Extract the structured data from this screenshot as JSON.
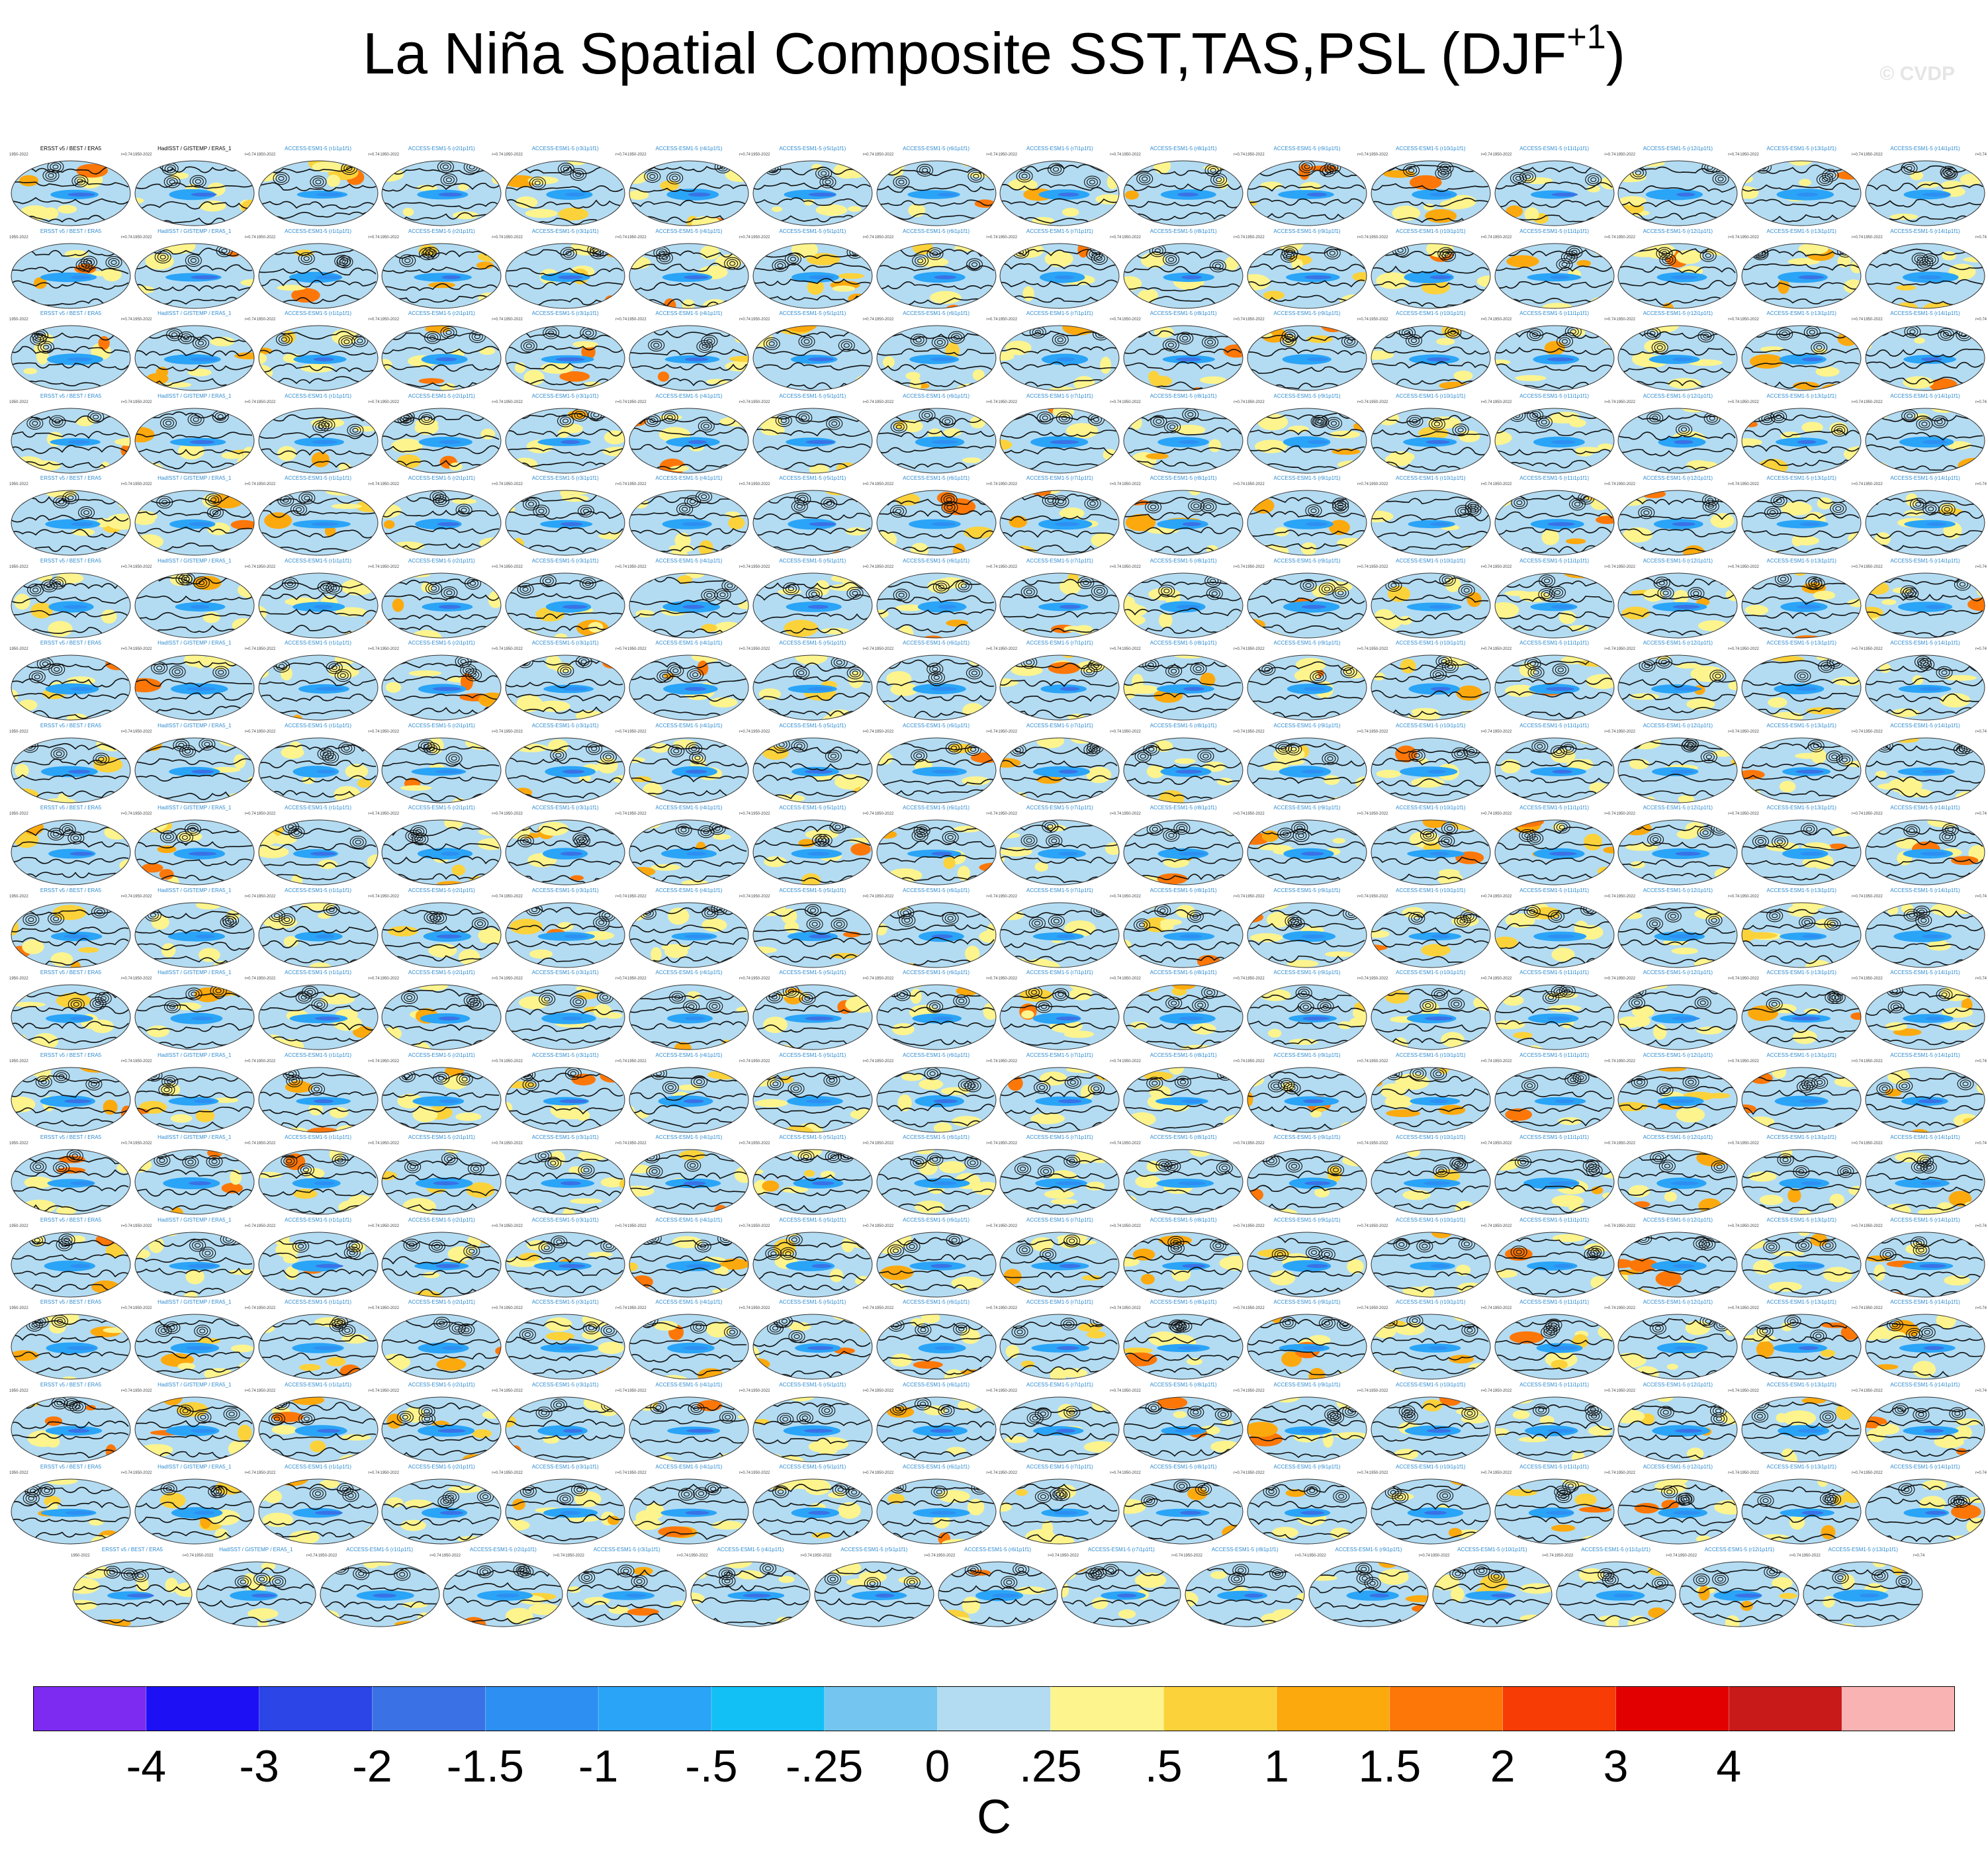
{
  "title": {
    "main": "La Niña Spatial Composite SST,TAS,PSL (DJF",
    "superscript": "+1",
    "close": ")"
  },
  "watermark": "© CVDP",
  "panels": {
    "year_range": "1950-2022",
    "stat_label": "r=0.74",
    "titles": [
      "ERSST v5 / BEST / ERA5",
      "HadISST / GISTEMP / ERA5_1",
      "ACCESS-ESM1-5 (r1i1p1f1)",
      "ACCESS-ESM1-5 (r2i1p1f1)",
      "ACCESS-ESM1-5 (r3i1p1f1)",
      "ACCESS-ESM1-5 (r4i1p1f1)",
      "ACCESS-ESM1-5 (r5i1p1f1)",
      "ACCESS-ESM1-5 (r6i1p1f1)",
      "ACCESS-ESM1-5 (r7i1p1f1)",
      "ACCESS-ESM1-5 (r8i1p1f1)",
      "ACCESS-ESM1-5 (r9i1p1f1)",
      "ACCESS-ESM1-5 (r10i1p1f1)",
      "ACCESS-ESM1-5 (r11i1p1f1)",
      "ACCESS-ESM1-5 (r12i1p1f1)",
      "ACCESS-ESM1-5 (r13i1p1f1)",
      "ACCESS-ESM1-5 (r14i1p1f1)"
    ]
  },
  "colorbar": {
    "colors": [
      "#7d2bf0",
      "#1e10f5",
      "#2c45e6",
      "#3a72e6",
      "#2e8ff2",
      "#2aa4f7",
      "#12c0f5",
      "#74c6f0",
      "#b3dcf2",
      "#fdf48d",
      "#fcd23b",
      "#fca90e",
      "#fc7708",
      "#f83c05",
      "#e30000",
      "#c91a1a",
      "#fab3b3"
    ],
    "labels": [
      "-4",
      "-3",
      "-2",
      "-1.5",
      "-1",
      "-.5",
      "-.25",
      "0",
      ".25",
      ".5",
      "1",
      "1.5",
      "2",
      "3",
      "4"
    ],
    "units": "C"
  },
  "chart_data": {
    "type": "heatmap",
    "title": "La Niña Spatial Composite SST,TAS,PSL (DJF+1)",
    "description_of_layout": "grid of small global map panels: 17 full rows of 16 maps plus a final row of 15",
    "rows": 18,
    "columns": 16,
    "panel_count": 287,
    "fields": [
      "SST",
      "TAS",
      "PSL"
    ],
    "season": "DJF+1",
    "colorbar_levels": [
      -4,
      -3,
      -2,
      -1.5,
      -1,
      -0.5,
      -0.25,
      0,
      0.25,
      0.5,
      1,
      1.5,
      2,
      3,
      4
    ],
    "units": "C",
    "psl_contours": "black lines"
  }
}
